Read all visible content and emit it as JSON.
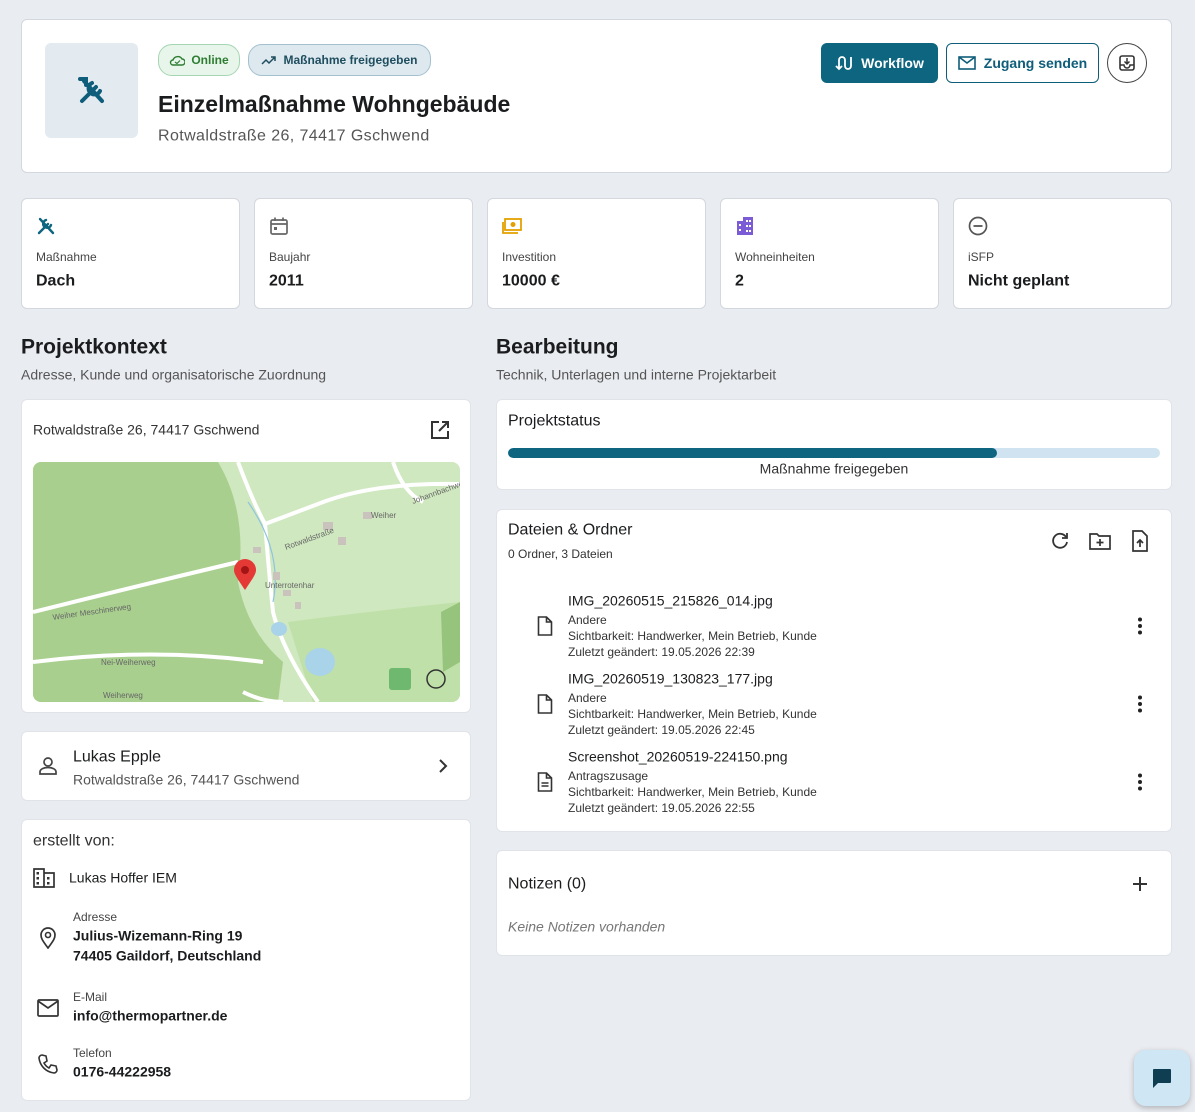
{
  "header": {
    "badges": [
      "Online",
      "Maßnahme freigegeben"
    ],
    "title": "Einzelmaßnahme Wohngebäude",
    "address": "Rotwaldstraße 26, 74417 Gschwend",
    "actions": [
      "Workflow",
      "Zugang senden"
    ]
  },
  "stats": [
    {
      "label": "Maßnahme",
      "value": "Dach"
    },
    {
      "label": "Baujahr",
      "value": "2011"
    },
    {
      "label": "Investition",
      "value": "10000 €"
    },
    {
      "label": "Wohneinheiten",
      "value": "2"
    },
    {
      "label": "iSFP",
      "value": "Nicht geplant"
    }
  ],
  "projektkontext": {
    "title": "Projektkontext",
    "subtitle": "Adresse, Kunde und organisatorische Zuordnung",
    "map": {
      "address": "Rotwaldstraße 26, 74417 Gschwend",
      "labels": [
        "Rotwaldstraße",
        "Johannbachweg",
        "Weiher",
        "Unterrotenhar",
        "Weiher Meschinerweg",
        "Nei-Weiherweg",
        "Weiherweg"
      ]
    },
    "customer": {
      "name": "Lukas Epple",
      "address": "Rotwaldstraße 26, 74417 Gschwend"
    },
    "creator": {
      "heading": "erstellt von:",
      "company": "Lukas Hoffer IEM",
      "fields": [
        {
          "label": "Adresse",
          "lines": [
            "Julius-Wizemann-Ring 19",
            "74405 Gaildorf, Deutschland"
          ]
        },
        {
          "label": "E-Mail",
          "lines": [
            "info@thermopartner.de"
          ]
        },
        {
          "label": "Telefon",
          "lines": [
            "0176-44222958"
          ]
        }
      ]
    }
  },
  "bearbeitung": {
    "title": "Bearbeitung",
    "subtitle": "Technik, Unterlagen und interne Projektarbeit",
    "status": {
      "title": "Projektstatus",
      "progress": 75,
      "label": "Maßnahme freigegeben"
    },
    "files": {
      "title": "Dateien & Ordner",
      "summary": "0 Ordner, 3 Dateien",
      "items": [
        {
          "name": "IMG_20260515_215826_014.jpg",
          "category": "Andere",
          "visibility": "Sichtbarkeit: Handwerker, Mein Betrieb, Kunde",
          "modified": "Zuletzt geändert: 19.05.2026 22:39"
        },
        {
          "name": "IMG_20260519_130823_177.jpg",
          "category": "Andere",
          "visibility": "Sichtbarkeit: Handwerker, Mein Betrieb, Kunde",
          "modified": "Zuletzt geändert: 19.05.2026 22:45"
        },
        {
          "name": "Screenshot_20260519-224150.png",
          "category": "Antragszusage",
          "visibility": "Sichtbarkeit: Handwerker, Mein Betrieb, Kunde",
          "modified": "Zuletzt geändert: 19.05.2026 22:55"
        }
      ]
    },
    "notes": {
      "title": "Notizen (0)",
      "empty": "Keine Notizen vorhanden"
    }
  }
}
